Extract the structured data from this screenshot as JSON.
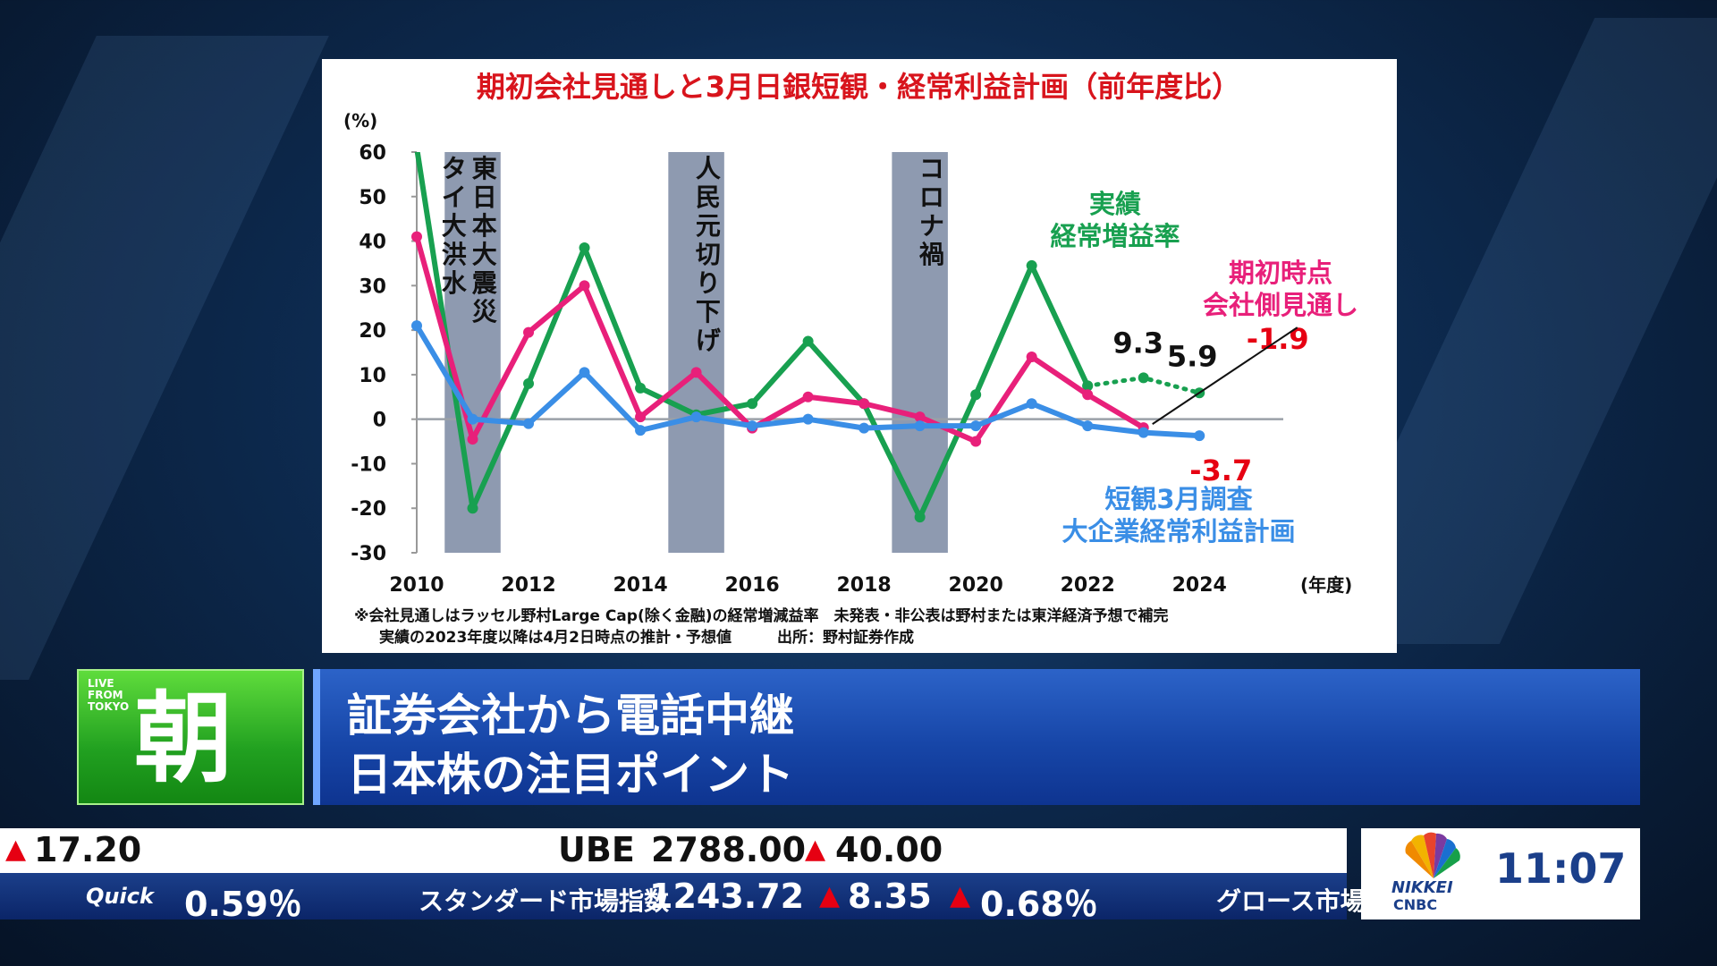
{
  "chart_data": {
    "type": "line",
    "title": "期初会社見通しと3月日銀短観・経常利益計画（前年度比）",
    "y_unit": "(%)",
    "x_unit": "(年度)",
    "ylim": [
      -30,
      60
    ],
    "yticks": [
      60,
      50,
      40,
      30,
      20,
      10,
      0,
      -10,
      -20,
      -30
    ],
    "xlim": [
      2010,
      2025.5
    ],
    "xticks": [
      2010,
      2012,
      2014,
      2016,
      2018,
      2020,
      2022,
      2024
    ],
    "shaded_periods": [
      {
        "x0": 2010.5,
        "x1": 2011.5,
        "label_cols": [
          "東日本大震災",
          "タイ大洪水"
        ]
      },
      {
        "x0": 2014.5,
        "x1": 2015.5,
        "label_cols": [
          "人民元切り下げ"
        ]
      },
      {
        "x0": 2018.5,
        "x1": 2019.5,
        "label_cols": [
          "コロナ禍"
        ]
      }
    ],
    "series": [
      {
        "name": "実績経常増益率",
        "label_lines": [
          "実績",
          "経常増益率"
        ],
        "color": "#18a050",
        "x": [
          2010,
          2011,
          2012,
          2013,
          2014,
          2015,
          2016,
          2017,
          2018,
          2019,
          2020,
          2021,
          2022
        ],
        "values": [
          61,
          -20,
          8,
          38.5,
          7,
          1,
          3.5,
          17.5,
          3.5,
          -22,
          5.5,
          34.5,
          7.5
        ],
        "dotted_x": [
          2022,
          2023,
          2024
        ],
        "dotted_values": [
          7.5,
          9.3,
          5.9
        ]
      },
      {
        "name": "期初時点会社側見通し",
        "label_lines": [
          "期初時点",
          "会社側見通し"
        ],
        "color": "#e8207a",
        "x": [
          2010,
          2011,
          2012,
          2013,
          2014,
          2015,
          2016,
          2017,
          2018,
          2019,
          2020,
          2021,
          2022,
          2023
        ],
        "values": [
          41,
          -4.5,
          19.5,
          30,
          0.5,
          10.5,
          -2,
          5,
          3.5,
          0.5,
          -5,
          14,
          5.5,
          -1.9
        ]
      },
      {
        "name": "短観3月調査大企業経常利益計画",
        "label_lines": [
          "短観3月調査",
          "大企業経常利益計画"
        ],
        "color": "#3a8ee6",
        "x": [
          2010,
          2011,
          2012,
          2013,
          2014,
          2015,
          2016,
          2017,
          2018,
          2019,
          2020,
          2021,
          2022,
          2023,
          2024
        ],
        "values": [
          21,
          0,
          -1,
          10.5,
          -2.5,
          0.5,
          -1.5,
          0,
          -2,
          -1.5,
          -1.5,
          3.5,
          -1.5,
          -3,
          -3.7
        ]
      }
    ],
    "annotations": [
      {
        "text": "9.3",
        "x": 2023,
        "y": 9.3,
        "color": "#111111"
      },
      {
        "text": "5.9",
        "x": 2024,
        "y": 5.9,
        "color": "#111111"
      },
      {
        "text": "-1.9",
        "x": 2023,
        "y": -1.9,
        "color": "#e60012"
      },
      {
        "text": "-3.7",
        "x": 2024,
        "y": -3.7,
        "color": "#e60012"
      }
    ],
    "notes": [
      "※会社見通しはラッセル野村Large Cap(除く金融)の経常増減益率　未発表・非公表は野村または東洋経済予想で補完",
      "実績の2023年度以降は4月2日時点の推計・予想値　　　出所：野村証券作成"
    ]
  },
  "segment": {
    "live_tag": "LIVE FROM TOKYO",
    "live_kanji": "朝",
    "headline_1": "証券会社から電話中継",
    "headline_2": "日本株の注目ポイント"
  },
  "ticker": {
    "top_change": "17.20",
    "top_name": "UBE",
    "top_price": "2788.00",
    "top_price_change": "40.00",
    "source": "Quick",
    "pct_1": "0.59％",
    "index_name": "スタンダード市場指数",
    "index_value": "1243.72",
    "index_change": "8.35",
    "index_pct": "0.68％",
    "next_name": "グロース市場"
  },
  "clock": {
    "time": "11:07",
    "logo_top": "NIKKEI",
    "logo_bottom": "CNBC"
  },
  "colors": {
    "up_arrow": "#e60012",
    "title_red": "#d8141c"
  }
}
